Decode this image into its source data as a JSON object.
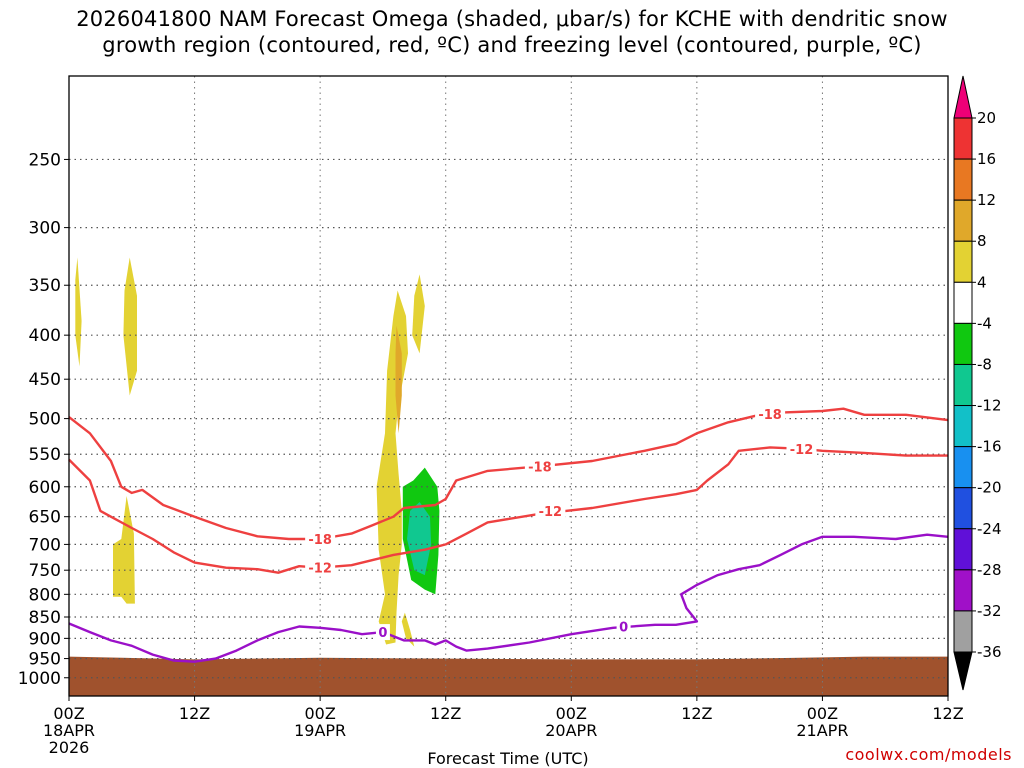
{
  "title_line1": "2026041800 NAM Forecast Omega (shaded, μbar/s) for KCHE with dendritic snow",
  "title_line2": "growth region (contoured, red, ºC) and freezing level (contoured, purple, ºC)",
  "credit": "coolwx.com/models",
  "chart_data": {
    "type": "time-height cross section",
    "xlabel": "Forecast Time (UTC)",
    "x_ticks": [
      {
        "hour": 0,
        "l1": "00Z",
        "l2": "18APR",
        "l3": "2026"
      },
      {
        "hour": 12,
        "l1": "12Z",
        "l2": "",
        "l3": ""
      },
      {
        "hour": 24,
        "l1": "00Z",
        "l2": "19APR",
        "l3": ""
      },
      {
        "hour": 36,
        "l1": "12Z",
        "l2": "",
        "l3": ""
      },
      {
        "hour": 48,
        "l1": "00Z",
        "l2": "20APR",
        "l3": ""
      },
      {
        "hour": 60,
        "l1": "12Z",
        "l2": "",
        "l3": ""
      },
      {
        "hour": 72,
        "l1": "00Z",
        "l2": "21APR",
        "l3": ""
      },
      {
        "hour": 84,
        "l1": "12Z",
        "l2": "",
        "l3": ""
      }
    ],
    "xlim": [
      0,
      84
    ],
    "y_axis": "pressure (log scale, reversed)",
    "y_ticks": [
      250,
      300,
      350,
      400,
      450,
      500,
      550,
      600,
      650,
      700,
      750,
      800,
      850,
      900,
      950,
      1000
    ],
    "ylim": [
      1050,
      200
    ],
    "grid": true,
    "colorbar": {
      "labels": [
        "20",
        "16",
        "12",
        "8",
        "4",
        "-4",
        "-8",
        "-12",
        "-16",
        "-20",
        "-24",
        "-28",
        "-32",
        "-36"
      ],
      "colors": [
        "#ee0077",
        "#ee3333",
        "#e87822",
        "#e0a82a",
        "#e3d233",
        "#ffffff",
        "#10c810",
        "#10c890",
        "#12c0c8",
        "#1890f0",
        "#2050e0",
        "#6010d8",
        "#a010c8",
        "#a0a0a0",
        "#000000"
      ]
    },
    "omega_regions": [
      {
        "color": "#e3d233",
        "points": [
          [
            0.8,
            325
          ],
          [
            1.2,
            385
          ],
          [
            1.0,
            435
          ],
          [
            0.6,
            400
          ],
          [
            0.6,
            345
          ]
        ]
      },
      {
        "color": "#e3d233",
        "points": [
          [
            5.8,
            325
          ],
          [
            6.5,
            360
          ],
          [
            6.5,
            440
          ],
          [
            5.8,
            470
          ],
          [
            5.2,
            400
          ],
          [
            5.3,
            355
          ]
        ]
      },
      {
        "color": "#e3d233",
        "points": [
          [
            5.5,
            615
          ],
          [
            6.2,
            680
          ],
          [
            6.3,
            820
          ],
          [
            5.5,
            820
          ],
          [
            5.0,
            805
          ],
          [
            4.2,
            805
          ],
          [
            4.2,
            700
          ],
          [
            5.0,
            690
          ]
        ]
      },
      {
        "color": "#e3d233",
        "points": [
          [
            31.4,
            355
          ],
          [
            32.2,
            380
          ],
          [
            32.4,
            420
          ],
          [
            31.5,
            480
          ],
          [
            31.2,
            520
          ],
          [
            31.5,
            580
          ],
          [
            31.8,
            640
          ],
          [
            31.8,
            700
          ],
          [
            31.5,
            760
          ],
          [
            31.3,
            840
          ],
          [
            31.2,
            910
          ],
          [
            30.3,
            915
          ],
          [
            29.6,
            860
          ],
          [
            30.2,
            800
          ],
          [
            29.6,
            710
          ],
          [
            29.4,
            600
          ],
          [
            30.2,
            520
          ],
          [
            30.4,
            440
          ],
          [
            31.0,
            380
          ]
        ]
      },
      {
        "color": "#e3d233",
        "points": [
          [
            33.5,
            340
          ],
          [
            34.0,
            370
          ],
          [
            33.5,
            420
          ],
          [
            32.8,
            400
          ],
          [
            33.0,
            360
          ]
        ]
      },
      {
        "color": "#e3d233",
        "points": [
          [
            32.1,
            840
          ],
          [
            32.6,
            880
          ],
          [
            33.0,
            920
          ],
          [
            32.2,
            900
          ],
          [
            31.8,
            860
          ]
        ]
      },
      {
        "color": "#e0a82a",
        "points": [
          [
            31.3,
            390
          ],
          [
            31.8,
            420
          ],
          [
            31.8,
            470
          ],
          [
            31.5,
            520
          ],
          [
            31.2,
            470
          ],
          [
            31.2,
            420
          ]
        ]
      },
      {
        "color": "#10c810",
        "points": [
          [
            34.0,
            570
          ],
          [
            35.2,
            600
          ],
          [
            35.4,
            640
          ],
          [
            35.3,
            720
          ],
          [
            35.0,
            800
          ],
          [
            34.0,
            790
          ],
          [
            32.7,
            770
          ],
          [
            31.9,
            690
          ],
          [
            31.9,
            600
          ],
          [
            32.9,
            590
          ]
        ]
      },
      {
        "color": "#10c890",
        "points": [
          [
            33.5,
            625
          ],
          [
            34.5,
            650
          ],
          [
            34.6,
            700
          ],
          [
            34.0,
            760
          ],
          [
            33.0,
            750
          ],
          [
            32.3,
            690
          ],
          [
            32.6,
            640
          ]
        ]
      }
    ],
    "contours": [
      {
        "name": "-18",
        "color": "#ee4040",
        "label": "-18",
        "points": [
          [
            0,
            498
          ],
          [
            2,
            520
          ],
          [
            4,
            560
          ],
          [
            5,
            600
          ],
          [
            6,
            610
          ],
          [
            7,
            605
          ],
          [
            9,
            630
          ],
          [
            12,
            650
          ],
          [
            15,
            670
          ],
          [
            18,
            685
          ],
          [
            21,
            690
          ],
          [
            24,
            690
          ],
          [
            27,
            680
          ],
          [
            29,
            665
          ],
          [
            31,
            650
          ],
          [
            32,
            635
          ],
          [
            35,
            630
          ],
          [
            36,
            620
          ],
          [
            37,
            590
          ],
          [
            40,
            575
          ],
          [
            45,
            568
          ],
          [
            50,
            560
          ],
          [
            55,
            545
          ],
          [
            58,
            535
          ],
          [
            60,
            520
          ],
          [
            63,
            505
          ],
          [
            66,
            495
          ],
          [
            68,
            492
          ],
          [
            72,
            490
          ],
          [
            74,
            487
          ],
          [
            76,
            495
          ],
          [
            80,
            495
          ],
          [
            84,
            502
          ]
        ],
        "label_at": [
          [
            24,
            690
          ],
          [
            45,
            568
          ],
          [
            67,
            494
          ]
        ]
      },
      {
        "name": "-12",
        "color": "#ee4040",
        "label": "-12",
        "points": [
          [
            0,
            558
          ],
          [
            2,
            590
          ],
          [
            3,
            640
          ],
          [
            4,
            650
          ],
          [
            6,
            670
          ],
          [
            8,
            690
          ],
          [
            10,
            715
          ],
          [
            12,
            735
          ],
          [
            15,
            745
          ],
          [
            18,
            748
          ],
          [
            20,
            755
          ],
          [
            22,
            742
          ],
          [
            24,
            745
          ],
          [
            27,
            740
          ],
          [
            29,
            730
          ],
          [
            31,
            720
          ],
          [
            34,
            710
          ],
          [
            35,
            705
          ],
          [
            36,
            700
          ],
          [
            38,
            680
          ],
          [
            40,
            660
          ],
          [
            45,
            645
          ],
          [
            50,
            635
          ],
          [
            55,
            620
          ],
          [
            58,
            612
          ],
          [
            60,
            605
          ],
          [
            61,
            590
          ],
          [
            63,
            565
          ],
          [
            64,
            545
          ],
          [
            67,
            540
          ],
          [
            70,
            542
          ],
          [
            72,
            545
          ],
          [
            76,
            548
          ],
          [
            80,
            552
          ],
          [
            84,
            552
          ]
        ],
        "label_at": [
          [
            24,
            745
          ],
          [
            46,
            640
          ],
          [
            70,
            542
          ]
        ]
      },
      {
        "name": "0",
        "color": "#9a10c8",
        "label": "0",
        "points": [
          [
            0,
            865
          ],
          [
            2,
            885
          ],
          [
            4,
            905
          ],
          [
            6,
            918
          ],
          [
            8,
            940
          ],
          [
            10,
            955
          ],
          [
            12,
            958
          ],
          [
            14,
            950
          ],
          [
            16,
            930
          ],
          [
            18,
            905
          ],
          [
            20,
            885
          ],
          [
            22,
            872
          ],
          [
            24,
            875
          ],
          [
            26,
            880
          ],
          [
            28,
            890
          ],
          [
            30,
            885
          ],
          [
            31,
            895
          ],
          [
            32,
            905
          ],
          [
            34,
            905
          ],
          [
            35,
            915
          ],
          [
            36,
            905
          ],
          [
            37,
            920
          ],
          [
            38,
            930
          ],
          [
            40,
            925
          ],
          [
            44,
            910
          ],
          [
            48,
            890
          ],
          [
            52,
            875
          ],
          [
            56,
            868
          ],
          [
            58,
            868
          ],
          [
            60,
            860
          ],
          [
            59,
            830
          ],
          [
            58.5,
            800
          ],
          [
            60,
            780
          ],
          [
            62,
            760
          ],
          [
            64,
            748
          ],
          [
            66,
            740
          ],
          [
            68,
            720
          ],
          [
            70,
            700
          ],
          [
            72,
            686
          ],
          [
            75,
            686
          ],
          [
            79,
            690
          ],
          [
            82,
            682
          ],
          [
            84,
            686
          ]
        ],
        "label_at": [
          [
            30,
            885
          ],
          [
            53,
            872
          ]
        ]
      }
    ],
    "terrain": {
      "color": "#a0522d",
      "top_pressure": [
        [
          0,
          945
        ],
        [
          12,
          952
        ],
        [
          24,
          948
        ],
        [
          36,
          950
        ],
        [
          48,
          952
        ],
        [
          60,
          952
        ],
        [
          72,
          947
        ],
        [
          76,
          945
        ],
        [
          84,
          945
        ]
      ]
    }
  }
}
